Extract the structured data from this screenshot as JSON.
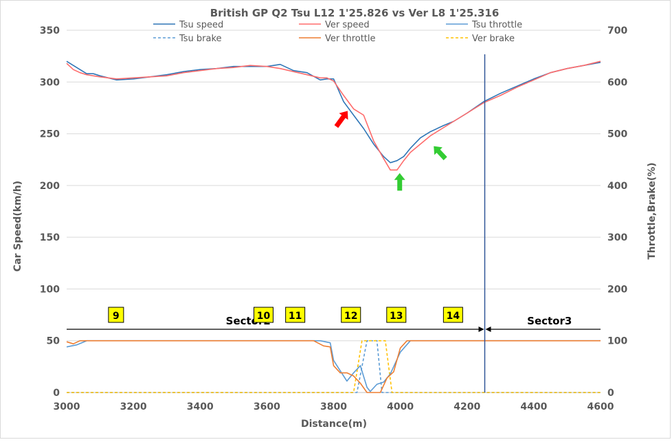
{
  "chart_data": {
    "type": "line",
    "title": "British GP Q2 Tsu L12 1'25.826 vs Ver L8 1'25.316",
    "xlabel": "Distance(m)",
    "ylabel": "Car Speed(km/h)",
    "y2label": "Throttle,Brake(%)",
    "xlim": [
      3000,
      4600
    ],
    "ylim": [
      0,
      350
    ],
    "y2lim": [
      0,
      700
    ],
    "xticks": [
      "3000",
      "3200",
      "3400",
      "3600",
      "3800",
      "4000",
      "4200",
      "4400",
      "4600"
    ],
    "yticks": [
      "0",
      "50",
      "100",
      "150",
      "200",
      "250",
      "300",
      "350"
    ],
    "y2ticks": [
      "0",
      "100",
      "200",
      "300",
      "400",
      "500",
      "600",
      "700"
    ],
    "grid": "horizontal",
    "legend_position": "top",
    "series": [
      {
        "name": "Tsu speed",
        "axis": "left",
        "color": "#2e75b6",
        "dash": "solid",
        "x": [
          3000,
          3020,
          3040,
          3060,
          3080,
          3100,
          3150,
          3200,
          3250,
          3300,
          3350,
          3400,
          3450,
          3500,
          3550,
          3600,
          3640,
          3680,
          3720,
          3760,
          3780,
          3800,
          3830,
          3860,
          3890,
          3920,
          3950,
          3970,
          3990,
          4010,
          4030,
          4060,
          4090,
          4130,
          4160,
          4200,
          4250,
          4300,
          4350,
          4400,
          4450,
          4500,
          4550,
          4600
        ],
        "y": [
          320,
          316,
          312,
          308,
          308,
          306,
          302,
          303,
          305,
          307,
          310,
          312,
          313,
          315,
          315,
          315,
          317,
          311,
          309,
          302,
          303,
          303,
          281,
          268,
          255,
          240,
          228,
          222,
          224,
          228,
          236,
          246,
          252,
          258,
          262,
          270,
          281,
          289,
          296,
          303,
          309,
          313,
          316,
          319
        ]
      },
      {
        "name": "Ver speed",
        "axis": "left",
        "color": "#ff6b6b",
        "dash": "solid",
        "x": [
          3000,
          3020,
          3040,
          3060,
          3080,
          3100,
          3150,
          3200,
          3250,
          3300,
          3350,
          3400,
          3450,
          3500,
          3550,
          3600,
          3640,
          3680,
          3720,
          3760,
          3780,
          3800,
          3830,
          3860,
          3890,
          3920,
          3950,
          3970,
          3990,
          4010,
          4030,
          4060,
          4090,
          4130,
          4160,
          4200,
          4250,
          4300,
          4350,
          4400,
          4450,
          4500,
          4550,
          4600
        ],
        "y": [
          318,
          312,
          309,
          307,
          306,
          305,
          303,
          304,
          305,
          306,
          309,
          311,
          313,
          314,
          316,
          315,
          313,
          310,
          307,
          304,
          304,
          301,
          287,
          274,
          268,
          243,
          226,
          215,
          215,
          224,
          232,
          240,
          248,
          256,
          262,
          270,
          280,
          287,
          295,
          302,
          309,
          313,
          316,
          320
        ]
      },
      {
        "name": "Tsu throttle",
        "axis": "right",
        "color": "#5b9bd5",
        "dash": "solid",
        "x": [
          3000,
          3030,
          3060,
          3100,
          3700,
          3760,
          3790,
          3800,
          3820,
          3840,
          3860,
          3880,
          3900,
          3910,
          3930,
          3950,
          3970,
          4000,
          4030,
          4100,
          4600
        ],
        "y": [
          88,
          92,
          100,
          100,
          100,
          100,
          96,
          62,
          42,
          22,
          38,
          52,
          10,
          2,
          16,
          20,
          36,
          78,
          100,
          100,
          100
        ]
      },
      {
        "name": "Tsu brake",
        "axis": "right",
        "color": "#5b9bd5",
        "dash": "dashed",
        "x": [
          3000,
          3870,
          3900,
          3910,
          3930,
          3945,
          3960,
          4600
        ],
        "y": [
          0,
          0,
          100,
          100,
          100,
          0,
          0,
          0
        ]
      },
      {
        "name": "Ver throttle",
        "axis": "right",
        "color": "#ed7d31",
        "dash": "solid",
        "x": [
          3000,
          3020,
          3040,
          3060,
          3100,
          3740,
          3770,
          3790,
          3800,
          3820,
          3840,
          3860,
          3880,
          3900,
          3920,
          3940,
          3960,
          3980,
          4000,
          4020,
          4600
        ],
        "y": [
          98,
          94,
          100,
          100,
          100,
          100,
          90,
          88,
          52,
          38,
          38,
          32,
          18,
          0,
          0,
          0,
          28,
          40,
          86,
          100,
          100
        ]
      },
      {
        "name": "Ver brake",
        "axis": "right",
        "color": "#ffc000",
        "dash": "dashed",
        "x": [
          3000,
          3860,
          3885,
          3905,
          3955,
          3975,
          3990,
          4600
        ],
        "y": [
          0,
          0,
          100,
          100,
          100,
          0,
          0,
          0
        ]
      }
    ],
    "sector_line_x": 4253,
    "sectors": [
      {
        "label": "Sector2",
        "from": 3000,
        "to": 4253
      },
      {
        "label": "Sector3",
        "from": 4253,
        "to": 4600
      }
    ],
    "corners": [
      {
        "label": "9",
        "x": 3148
      },
      {
        "label": "10",
        "x": 3590
      },
      {
        "label": "11",
        "x": 3685
      },
      {
        "label": "12",
        "x": 3852
      },
      {
        "label": "13",
        "x": 3988
      },
      {
        "label": "14",
        "x": 4158
      }
    ],
    "arrows": [
      {
        "color": "#ff0000",
        "tip": [
          3842,
          272
        ],
        "tail": [
          3808,
          257
        ]
      },
      {
        "color": "#33cc33",
        "tip": [
          3998,
          212
        ],
        "tail": [
          3998,
          195
        ]
      },
      {
        "color": "#33cc33",
        "tip": [
          4100,
          238
        ],
        "tail": [
          4135,
          226
        ]
      }
    ]
  }
}
